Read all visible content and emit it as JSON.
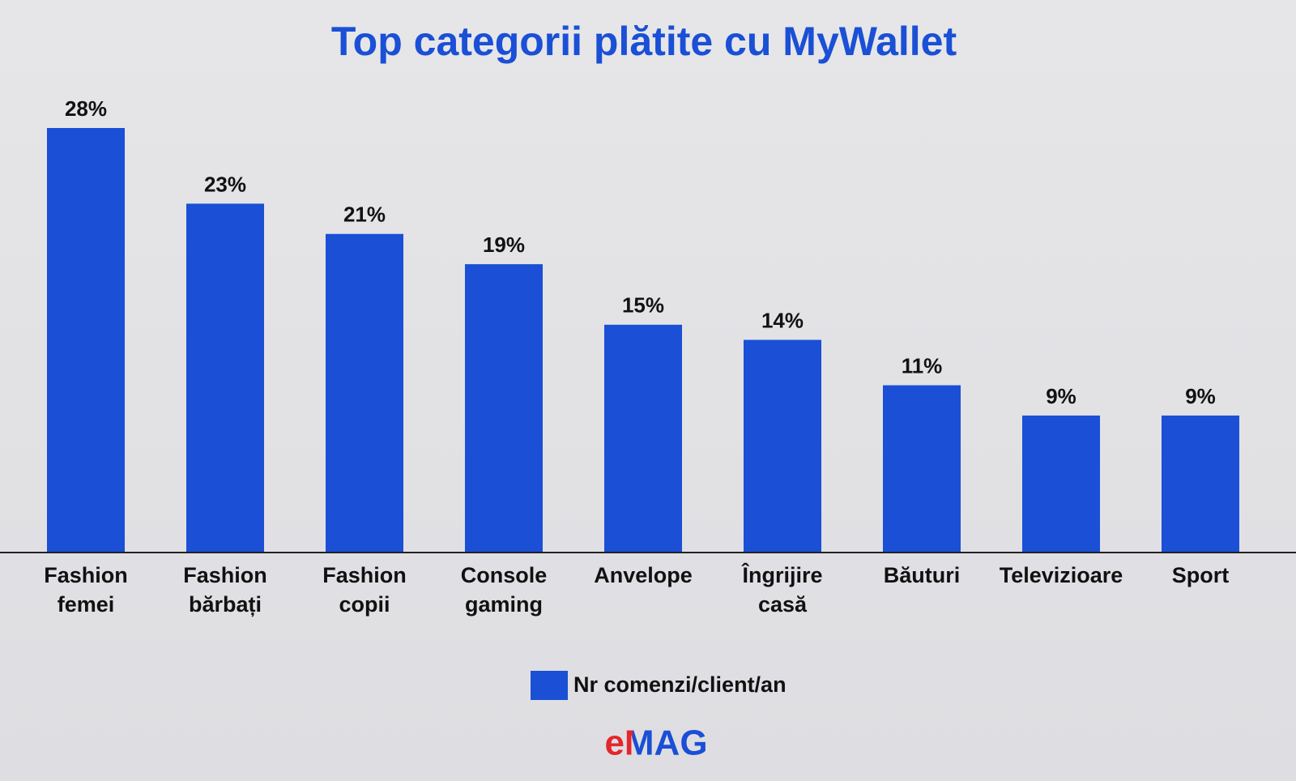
{
  "chart_data": {
    "type": "bar",
    "title": "Top categorii plătite cu MyWallet",
    "categories": [
      "Fashion femei",
      "Fashion bărbați",
      "Fashion copii",
      "Console gaming",
      "Anvelope",
      "Îngrijire casă",
      "Băuturi",
      "Televizioare",
      "Sport"
    ],
    "series": [
      {
        "name": "Nr comenzi/client/an",
        "color": "#1a4fd6",
        "values": [
          28,
          23,
          21,
          19,
          15,
          14,
          11,
          9,
          9
        ],
        "value_labels": [
          "28%",
          "23%",
          "21%",
          "19%",
          "15%",
          "14%",
          "11%",
          "9%",
          "9%"
        ]
      }
    ],
    "grid": false
  },
  "logo": "eMAG"
}
